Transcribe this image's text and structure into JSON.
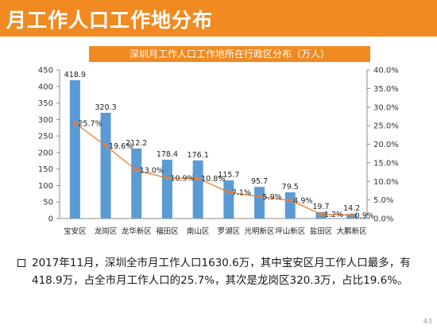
{
  "header": {
    "title": "月工作人口工作地分布"
  },
  "colors": {
    "header": "#f08a21",
    "bar": "#5b9bd5",
    "line": "#ed7d31"
  },
  "chart_data": {
    "type": "bar",
    "title": "深圳月工作人口工作地所在行政区分布（万人）",
    "categories": [
      "宝安区",
      "龙岗区",
      "龙华新区",
      "福田区",
      "南山区",
      "罗湖区",
      "光明新区",
      "坪山新区",
      "盐田区",
      "大鹏新区"
    ],
    "series": [
      {
        "values": [
          418.9,
          320.3,
          212.2,
          178.4,
          176.1,
          115.7,
          95.7,
          79.5,
          19.7,
          14.2
        ],
        "value_labels": [
          "418.9",
          "320.3",
          "212.2",
          "178.4",
          "176.1",
          "115.7",
          "95.7",
          "79.5",
          "19.7",
          "14.2"
        ],
        "axis": "left",
        "chart_type": "bar"
      },
      {
        "values": [
          25.7,
          19.6,
          13.0,
          10.9,
          10.8,
          7.1,
          5.9,
          4.9,
          1.2,
          0.9
        ],
        "value_labels": [
          "25.7%",
          "19.6%",
          "13.0%",
          "10.9%",
          "10.8%",
          "7.1%",
          "5.9%",
          "4.9%",
          "1.2%",
          "0.9%"
        ],
        "axis": "right",
        "chart_type": "line"
      }
    ],
    "ylim": [
      0,
      450
    ],
    "yticks": [
      "0",
      "50",
      "100",
      "150",
      "200",
      "250",
      "300",
      "350",
      "400",
      "450"
    ],
    "y2lim": [
      0,
      40
    ],
    "y2ticks": [
      "0.0%",
      "5.0%",
      "10.0%",
      "15.0%",
      "20.0%",
      "25.0%",
      "30.0%",
      "35.0%",
      "40.0%"
    ],
    "grid": false
  },
  "summary": {
    "text": "2017年11月，深圳全市月工作人口1630.6万，其中宝安区月工作人口最多，有418.9万，占全市月工作人口的25.7%，其次是龙岗区320.3万，占比19.6%。"
  },
  "page_number": "43"
}
